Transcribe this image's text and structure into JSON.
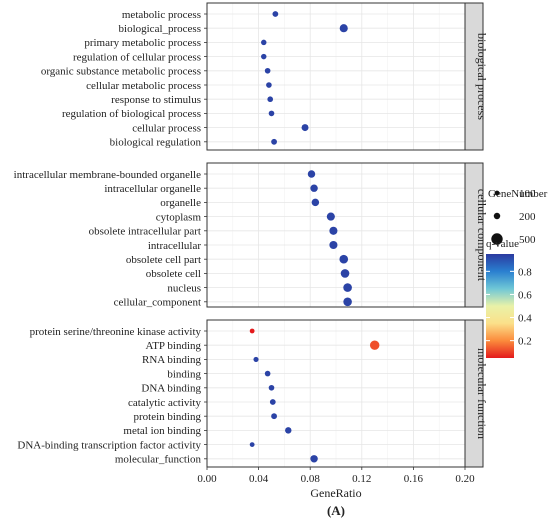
{
  "chart_data": {
    "type": "scatter",
    "title": "",
    "xlabel": "GeneRatio",
    "ylabel": "",
    "xlim": [
      0.0,
      0.2
    ],
    "x_ticks": [
      "0.00",
      "0.04",
      "0.08",
      "0.12",
      "0.16",
      "0.20"
    ],
    "grid": true,
    "caption": "(A)",
    "size_legend": {
      "title": "GeneNumber",
      "entries": [
        {
          "label": "100",
          "value": 100
        },
        {
          "label": "200",
          "value": 200
        },
        {
          "label": "500",
          "value": 500
        }
      ]
    },
    "color_legend": {
      "title": "q-value",
      "ticks": [
        "0.2",
        "0.4",
        "0.6",
        "0.8"
      ],
      "range": [
        0.05,
        0.95
      ],
      "colors_low_to_high": [
        "#e41a1c",
        "#fb8b3c",
        "#fbe08a",
        "#e9f2a8",
        "#6fc7d6",
        "#2a7fd0",
        "#2b3aa0"
      ]
    },
    "facets": [
      {
        "name": "biological process",
        "points": [
          {
            "term": "metabolic process",
            "x": 0.053,
            "size": 160,
            "q": 0.93
          },
          {
            "term": "biological_process",
            "x": 0.106,
            "size": 300,
            "q": 0.93
          },
          {
            "term": "primary metabolic process",
            "x": 0.044,
            "size": 140,
            "q": 0.93
          },
          {
            "term": "regulation of cellular process",
            "x": 0.044,
            "size": 140,
            "q": 0.93
          },
          {
            "term": "organic substance metabolic process",
            "x": 0.047,
            "size": 150,
            "q": 0.93
          },
          {
            "term": "cellular metabolic process",
            "x": 0.048,
            "size": 150,
            "q": 0.93
          },
          {
            "term": "response to stimulus",
            "x": 0.049,
            "size": 150,
            "q": 0.93
          },
          {
            "term": "regulation of biological process",
            "x": 0.05,
            "size": 150,
            "q": 0.93
          },
          {
            "term": "cellular process",
            "x": 0.076,
            "size": 230,
            "q": 0.93
          },
          {
            "term": "biological regulation",
            "x": 0.052,
            "size": 160,
            "q": 0.93
          }
        ]
      },
      {
        "name": "cellular component",
        "points": [
          {
            "term": "intracellular membrane-bounded organelle",
            "x": 0.081,
            "size": 260,
            "q": 0.93
          },
          {
            "term": "intracellular organelle",
            "x": 0.083,
            "size": 260,
            "q": 0.93
          },
          {
            "term": "organelle",
            "x": 0.084,
            "size": 260,
            "q": 0.93
          },
          {
            "term": "cytoplasm",
            "x": 0.096,
            "size": 300,
            "q": 0.93
          },
          {
            "term": "obsolete intracellular part",
            "x": 0.098,
            "size": 300,
            "q": 0.93
          },
          {
            "term": "intracellular",
            "x": 0.098,
            "size": 300,
            "q": 0.93
          },
          {
            "term": "obsolete cell part",
            "x": 0.106,
            "size": 330,
            "q": 0.93
          },
          {
            "term": "obsolete cell",
            "x": 0.107,
            "size": 330,
            "q": 0.93
          },
          {
            "term": "nucleus",
            "x": 0.109,
            "size": 330,
            "q": 0.93
          },
          {
            "term": "cellular_component",
            "x": 0.109,
            "size": 330,
            "q": 0.93
          }
        ]
      },
      {
        "name": "molecular function",
        "points": [
          {
            "term": "protein serine/threonine kinase activity",
            "x": 0.035,
            "size": 100,
            "q": 0.04
          },
          {
            "term": "ATP binding",
            "x": 0.13,
            "size": 380,
            "q": 0.12
          },
          {
            "term": "RNA binding",
            "x": 0.038,
            "size": 120,
            "q": 0.93
          },
          {
            "term": "binding",
            "x": 0.047,
            "size": 150,
            "q": 0.93
          },
          {
            "term": "DNA binding",
            "x": 0.05,
            "size": 150,
            "q": 0.93
          },
          {
            "term": "catalytic activity",
            "x": 0.051,
            "size": 160,
            "q": 0.93
          },
          {
            "term": "protein binding",
            "x": 0.052,
            "size": 160,
            "q": 0.93
          },
          {
            "term": "metal ion binding",
            "x": 0.063,
            "size": 200,
            "q": 0.93
          },
          {
            "term": "DNA-binding transcription factor activity",
            "x": 0.035,
            "size": 100,
            "q": 0.93
          },
          {
            "term": "molecular_function",
            "x": 0.083,
            "size": 260,
            "q": 0.93
          }
        ]
      }
    ]
  }
}
